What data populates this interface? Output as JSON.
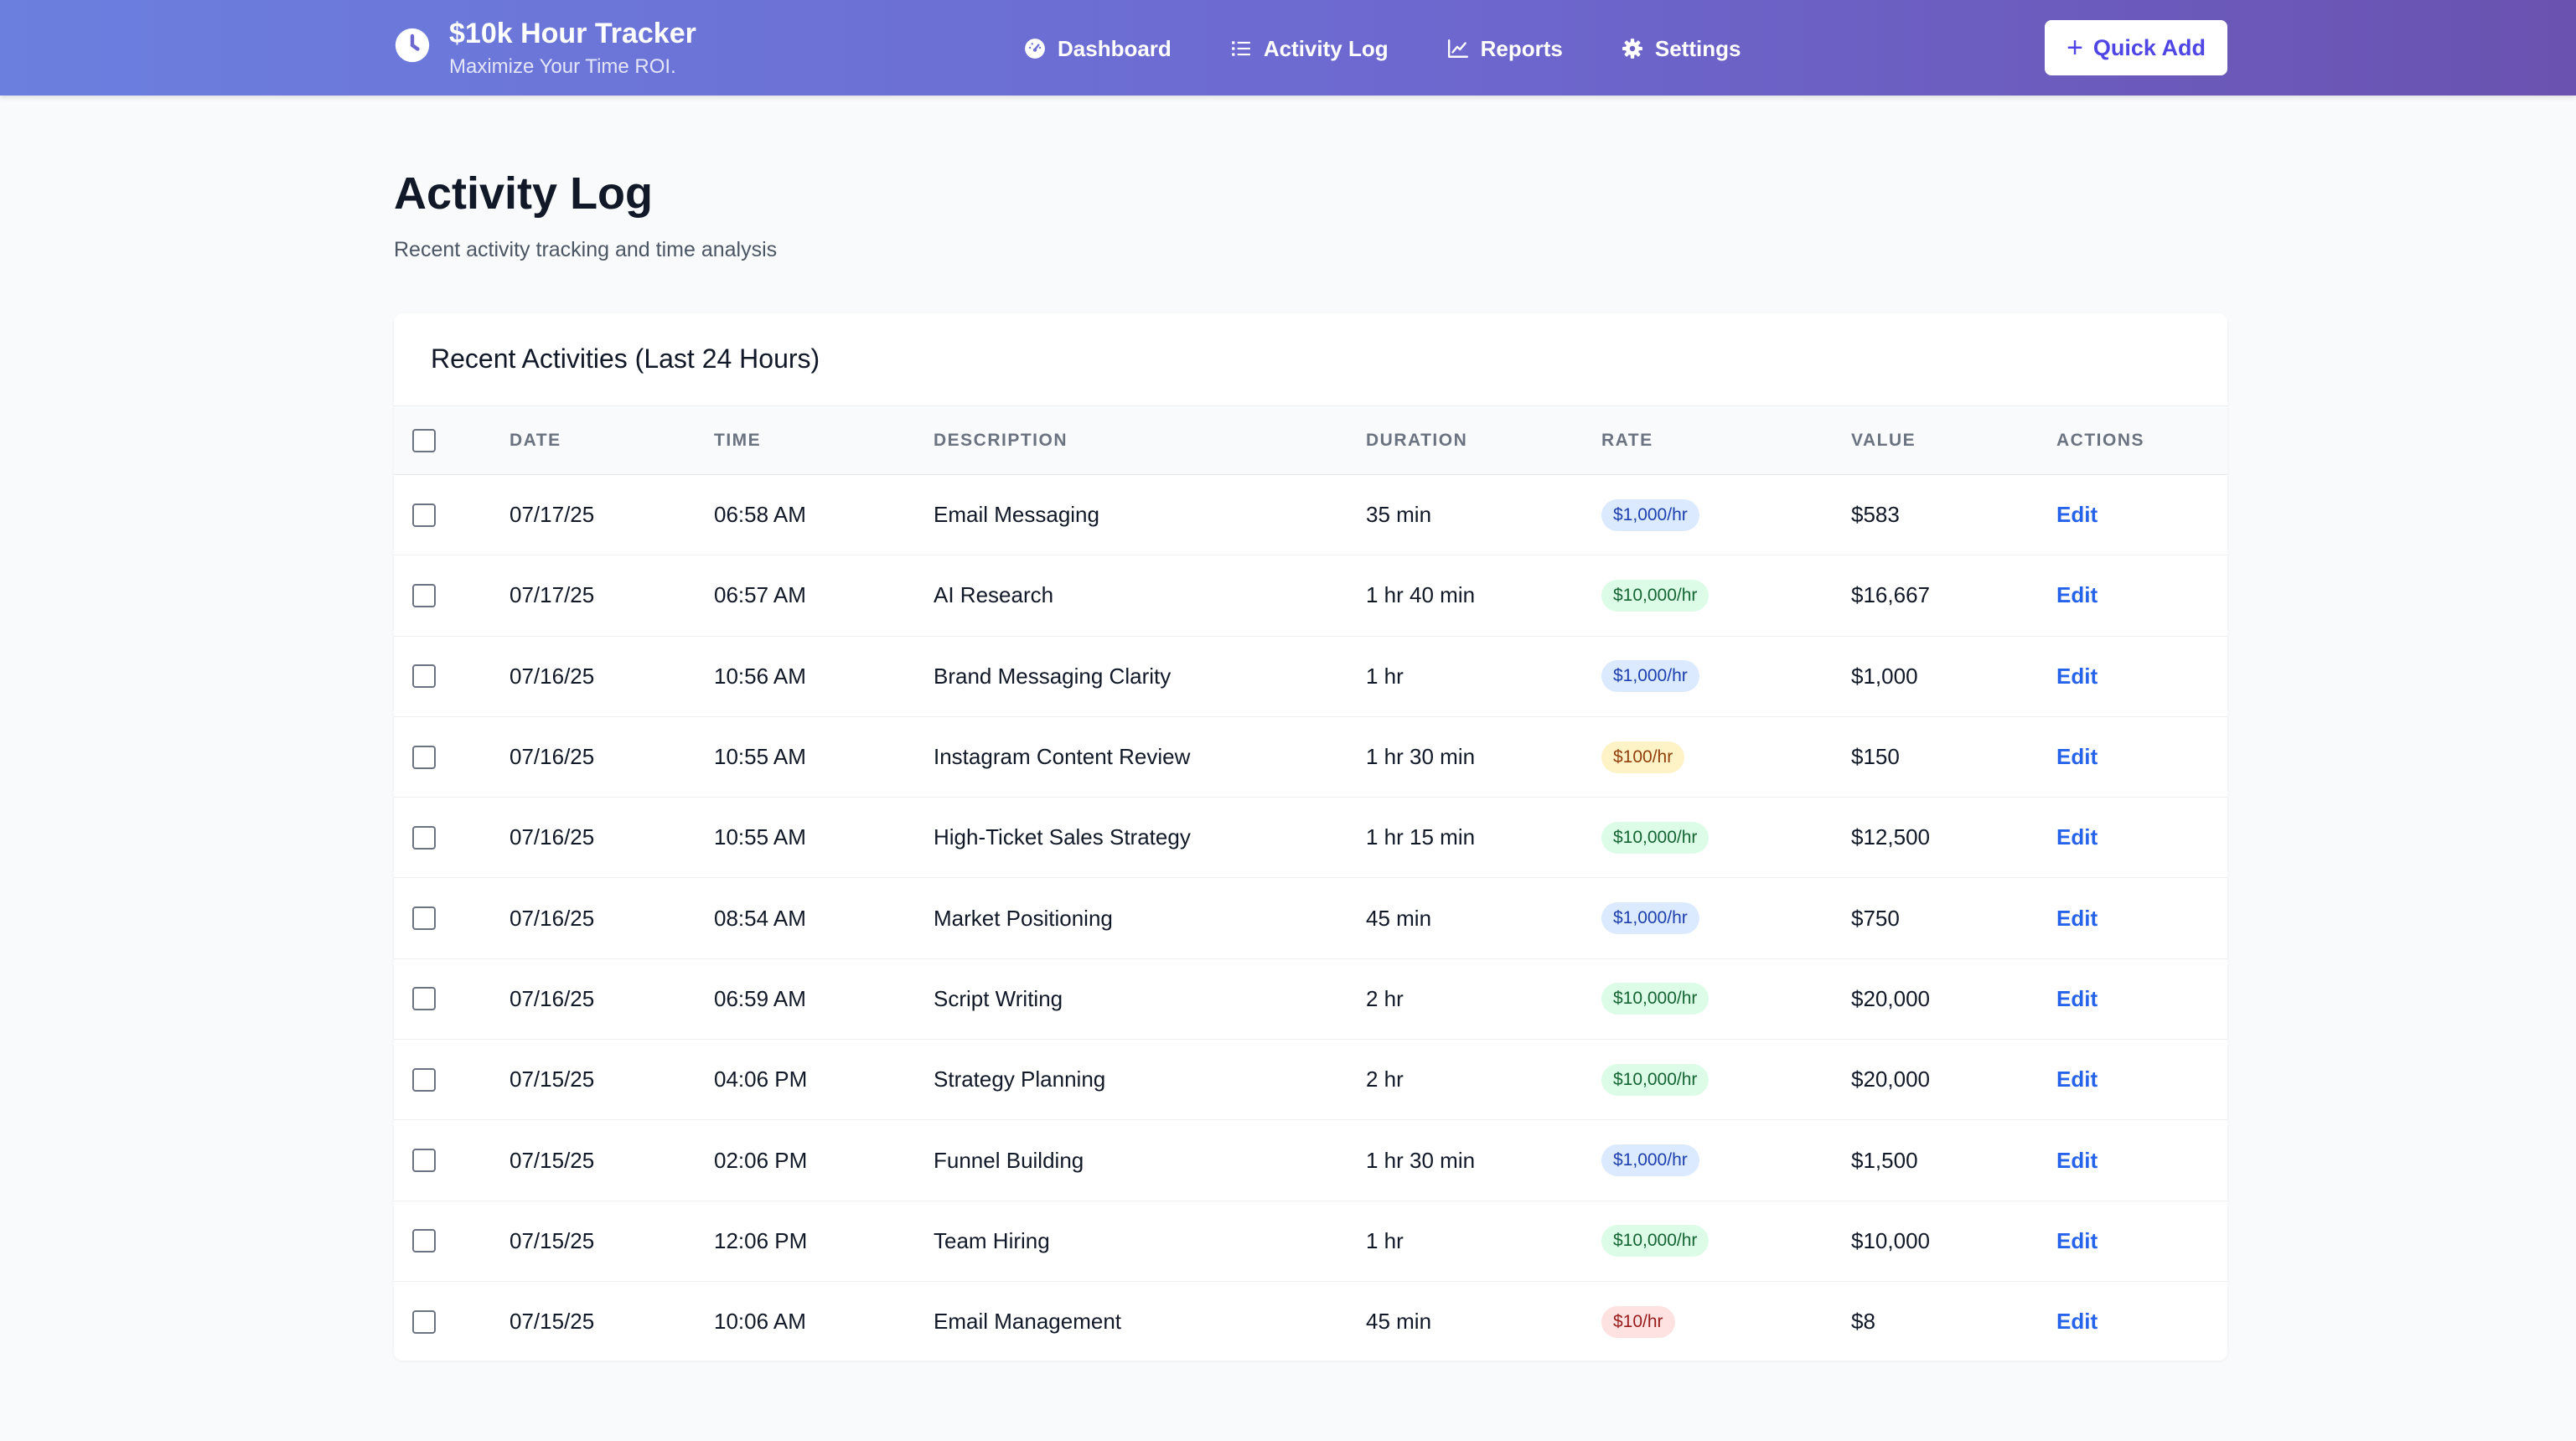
{
  "header": {
    "title": "$10k Hour Tracker",
    "subtitle": "Maximize Your Time ROI.",
    "logo_icon": "clock-icon",
    "nav": [
      {
        "label": "Dashboard",
        "icon": "gauge-icon"
      },
      {
        "label": "Activity Log",
        "icon": "list-icon"
      },
      {
        "label": "Reports",
        "icon": "chart-line-icon"
      },
      {
        "label": "Settings",
        "icon": "gear-icon"
      }
    ],
    "quick_add_label": "Quick Add"
  },
  "page": {
    "title": "Activity Log",
    "subtitle": "Recent activity tracking and time analysis"
  },
  "table": {
    "title": "Recent Activities (Last 24 Hours)",
    "columns": [
      "DATE",
      "TIME",
      "DESCRIPTION",
      "DURATION",
      "RATE",
      "VALUE",
      "ACTIONS"
    ],
    "rows": [
      {
        "date": "07/17/25",
        "time": "06:58 AM",
        "description": "Email Messaging",
        "duration": "35 min",
        "rate": "$1,000/hr",
        "value": "$583",
        "action": "Edit"
      },
      {
        "date": "07/17/25",
        "time": "06:57 AM",
        "description": "AI Research",
        "duration": "1 hr 40 min",
        "rate": "$10,000/hr",
        "value": "$16,667",
        "action": "Edit"
      },
      {
        "date": "07/16/25",
        "time": "10:56 AM",
        "description": "Brand Messaging Clarity",
        "duration": "1 hr",
        "rate": "$1,000/hr",
        "value": "$1,000",
        "action": "Edit"
      },
      {
        "date": "07/16/25",
        "time": "10:55 AM",
        "description": "Instagram Content Review",
        "duration": "1 hr 30 min",
        "rate": "$100/hr",
        "value": "$150",
        "action": "Edit"
      },
      {
        "date": "07/16/25",
        "time": "10:55 AM",
        "description": "High-Ticket Sales Strategy",
        "duration": "1 hr 15 min",
        "rate": "$10,000/hr",
        "value": "$12,500",
        "action": "Edit"
      },
      {
        "date": "07/16/25",
        "time": "08:54 AM",
        "description": "Market Positioning",
        "duration": "45 min",
        "rate": "$1,000/hr",
        "value": "$750",
        "action": "Edit"
      },
      {
        "date": "07/16/25",
        "time": "06:59 AM",
        "description": "Script Writing",
        "duration": "2 hr",
        "rate": "$10,000/hr",
        "value": "$20,000",
        "action": "Edit"
      },
      {
        "date": "07/15/25",
        "time": "04:06 PM",
        "description": "Strategy Planning",
        "duration": "2 hr",
        "rate": "$10,000/hr",
        "value": "$20,000",
        "action": "Edit"
      },
      {
        "date": "07/15/25",
        "time": "02:06 PM",
        "description": "Funnel Building",
        "duration": "1 hr 30 min",
        "rate": "$1,000/hr",
        "value": "$1,500",
        "action": "Edit"
      },
      {
        "date": "07/15/25",
        "time": "12:06 PM",
        "description": "Team Hiring",
        "duration": "1 hr",
        "rate": "$10,000/hr",
        "value": "$10,000",
        "action": "Edit"
      },
      {
        "date": "07/15/25",
        "time": "10:06 AM",
        "description": "Email Management",
        "duration": "45 min",
        "rate": "$10/hr",
        "value": "$8",
        "action": "Edit"
      }
    ]
  },
  "colors": {
    "header_gradient_start": "#6b7fdf",
    "header_gradient_end": "#6a52b0",
    "accent": "#4f46e5",
    "link": "#2563eb",
    "rate_badges": {
      "$10,000/hr": {
        "bg": "#dcfce7",
        "fg": "#166534"
      },
      "$1,000/hr": {
        "bg": "#dbeafe",
        "fg": "#1e40af"
      },
      "$100/hr": {
        "bg": "#fef3c7",
        "fg": "#92400e"
      },
      "$10/hr": {
        "bg": "#fee2e2",
        "fg": "#991b1b"
      }
    }
  }
}
